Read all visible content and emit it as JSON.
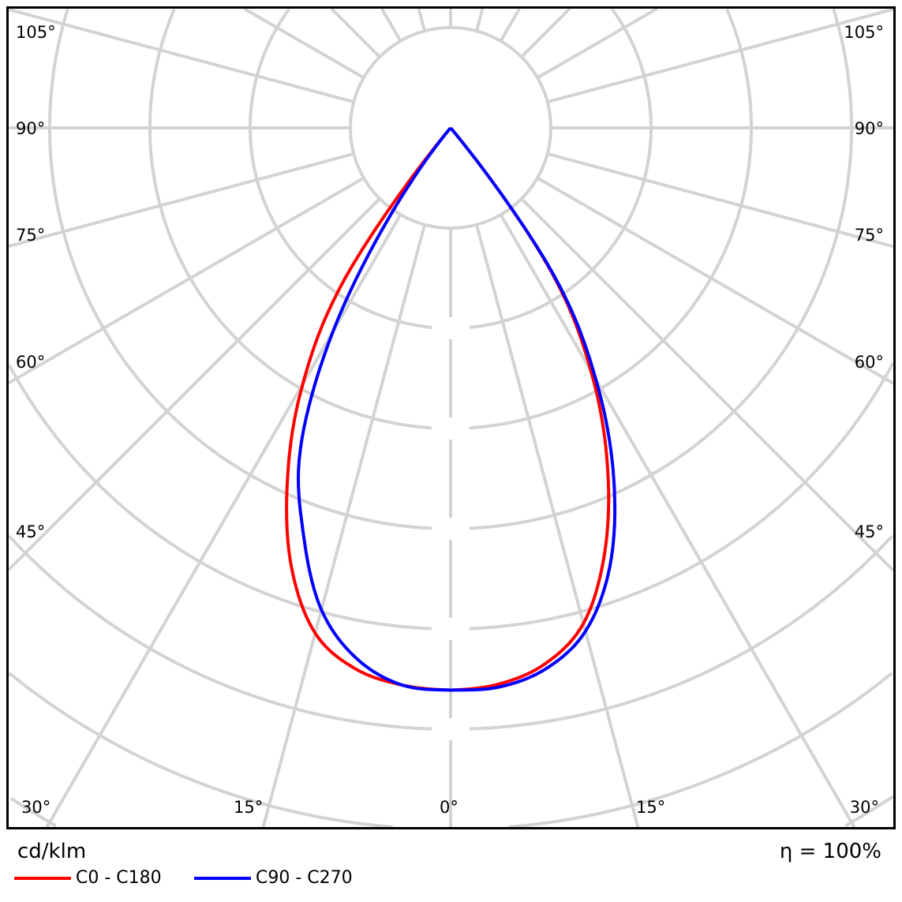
{
  "chart_data": {
    "type": "polar",
    "unit_label": "cd/klm",
    "efficiency_label": "η = 100%",
    "angle_labels": {
      "left": [
        "105°",
        "90°",
        "75°",
        "60°",
        "45°",
        "30°"
      ],
      "bottom": [
        "15°",
        "0°",
        "15°"
      ],
      "right": [
        "105°",
        "90°",
        "75°",
        "60°",
        "45°",
        "30°"
      ]
    },
    "angle_grid_step_deg": 15,
    "radial_grid": true,
    "radial_tick_labels_visible": false,
    "intensity_units": "grid rings (radial scale labels not shown)",
    "series": [
      {
        "name": "C0 - C180",
        "color": "#ff0000",
        "angles_deg": [
          0,
          5,
          10,
          15,
          20,
          25,
          30,
          35,
          40
        ],
        "right_half": [
          5.61,
          5.57,
          5.43,
          5.12,
          4.5,
          3.7,
          2.8,
          1.75,
          0.0
        ],
        "left_half": [
          5.61,
          5.58,
          5.48,
          5.22,
          4.65,
          3.85,
          2.95,
          1.85,
          0.0
        ]
      },
      {
        "name": "C90 - C270",
        "color": "#0000ff",
        "angles_deg": [
          0,
          5,
          10,
          15,
          20,
          25,
          30,
          35,
          40
        ],
        "right_half": [
          5.61,
          5.6,
          5.48,
          5.2,
          4.65,
          3.85,
          2.9,
          1.8,
          0.0
        ],
        "left_half": [
          5.61,
          5.58,
          5.38,
          4.98,
          4.3,
          3.55,
          2.35,
          0.95,
          0.0
        ]
      }
    ],
    "legend_position": "bottom-left"
  }
}
